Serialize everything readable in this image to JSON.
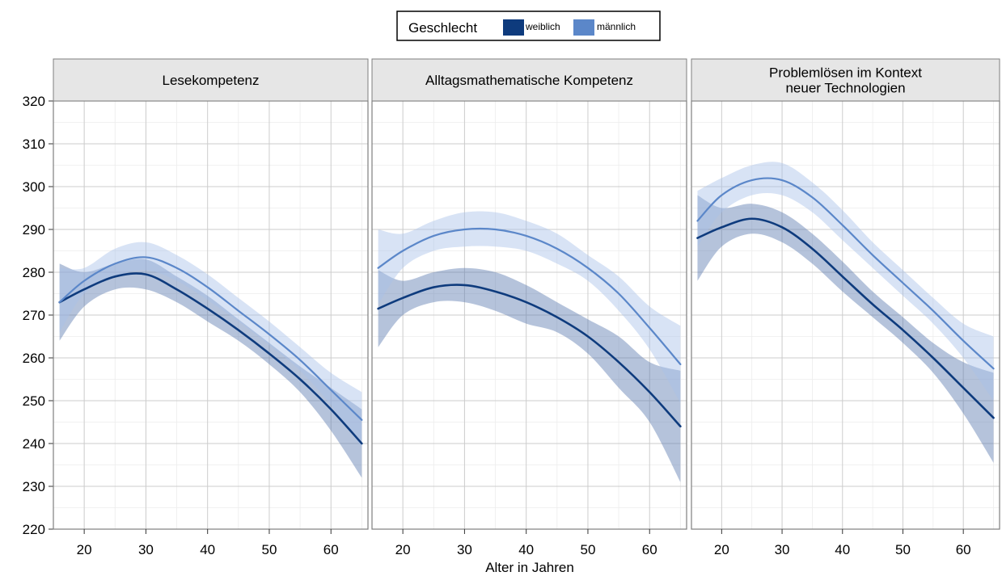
{
  "legend": {
    "title": "Geschlecht",
    "items": [
      {
        "label": "weiblich",
        "color": "#0e3b7d"
      },
      {
        "label": "männlich",
        "color": "#5b87c9"
      }
    ]
  },
  "x_axis_title": "Alter in Jahren",
  "band_colors": {
    "weiblich": "#5b7bb0",
    "männlich": "#a9c2e8"
  },
  "chart_data": {
    "type": "line",
    "x_ticks": [
      20,
      30,
      40,
      50,
      60
    ],
    "y_ticks": [
      220,
      230,
      240,
      250,
      260,
      270,
      280,
      290,
      300,
      310,
      320
    ],
    "xlim": [
      15,
      66
    ],
    "ylim": [
      220,
      320
    ],
    "grid": true,
    "legend_position": "top-center",
    "panels": [
      {
        "title_lines": [
          "Lesekompetenz"
        ],
        "x": [
          16,
          20,
          25,
          30,
          35,
          40,
          45,
          50,
          55,
          60,
          65
        ],
        "series": [
          {
            "name": "weiblich",
            "values": [
              273,
              276,
              279,
              279.5,
              276,
              271.5,
              266.5,
              261,
              255,
              248,
              240
            ],
            "lower": [
              264,
              272,
              276,
              276,
              273,
              268.5,
              264,
              258.5,
              252,
              243,
              232
            ],
            "upper": [
              282,
              280,
              282,
              283,
              279,
              274.5,
              269,
              263.5,
              258,
              253,
              248
            ]
          },
          {
            "name": "männlich",
            "values": [
              273,
              278,
              282,
              283.5,
              281,
              276.5,
              271,
              265.5,
              259.5,
              252.5,
              245.5
            ],
            "lower": [
              266,
              275,
              279,
              280.5,
              278,
              273.5,
              268.5,
              263,
              257,
              249,
              239
            ],
            "upper": [
              281,
              281,
              285.5,
              287,
              284,
              279.5,
              274,
              268.5,
              262.5,
              256.5,
              252
            ]
          }
        ]
      },
      {
        "title_lines": [
          "Alltagsmathematische Kompetenz"
        ],
        "x": [
          16,
          20,
          25,
          30,
          35,
          40,
          45,
          50,
          55,
          60,
          65
        ],
        "series": [
          {
            "name": "weiblich",
            "values": [
              271.5,
              274,
              276.5,
              277,
              275.5,
              273,
              269.5,
              265,
              259,
              252,
              244
            ],
            "lower": [
              262.5,
              270,
              273,
              273,
              271,
              268,
              266,
              261,
              253,
              245,
              231
            ],
            "upper": [
              280.5,
              278,
              280,
              281,
              280,
              277,
              273,
              269,
              265,
              259,
              257
            ]
          },
          {
            "name": "männlich",
            "values": [
              281,
              285,
              288.5,
              290,
              290,
              288.5,
              285.5,
              281,
              275,
              267,
              258.5
            ],
            "lower": [
              272.5,
              281,
              285,
              286,
              286,
              285,
              282,
              278,
              271,
              262,
              249.5
            ],
            "upper": [
              290,
              289,
              292,
              294,
              294,
              292,
              289,
              284,
              279,
              272,
              267.5
            ]
          }
        ]
      },
      {
        "title_lines": [
          "Problemlösen im Kontext",
          "neuer Technologien"
        ],
        "x": [
          16,
          20,
          25,
          30,
          35,
          40,
          45,
          50,
          55,
          60,
          65
        ],
        "series": [
          {
            "name": "weiblich",
            "values": [
              288,
              290.5,
              292.5,
              290.5,
              285.5,
              279,
              272.5,
              266.5,
              260,
              253,
              246
            ],
            "lower": [
              278,
              286,
              289,
              287,
              282,
              275.5,
              269.5,
              263.5,
              256.5,
              247,
              235.5
            ],
            "upper": [
              298,
              295,
              296,
              294,
              289,
              282.5,
              275.5,
              269.5,
              263.5,
              259,
              256.5
            ]
          },
          {
            "name": "männlich",
            "values": [
              292,
              298,
              301.5,
              301.5,
              297.5,
              291,
              284,
              277.5,
              271,
              264,
              257.5
            ],
            "lower": [
              286,
              294,
              298,
              298,
              294,
              287.5,
              281,
              274.5,
              268,
              260,
              250
            ],
            "upper": [
              299,
              302,
              305,
              305.5,
              301,
              294.5,
              287,
              280.5,
              274,
              268,
              265
            ]
          }
        ]
      }
    ]
  }
}
